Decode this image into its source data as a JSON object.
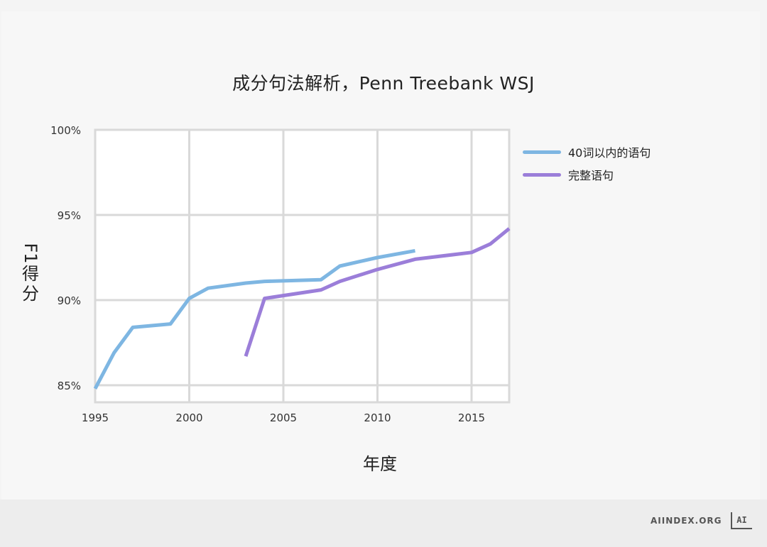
{
  "chart_data": {
    "type": "line",
    "title": "成分句法解析，Penn Treebank WSJ",
    "xlabel": "年度",
    "ylabel": "F1得分",
    "xlim": [
      1995,
      2017
    ],
    "ylim": [
      84,
      100
    ],
    "x_ticks": [
      1995,
      2000,
      2005,
      2010,
      2015
    ],
    "y_ticks": [
      85,
      90,
      95,
      100
    ],
    "y_tick_labels": [
      "85%",
      "90%",
      "95%",
      "100%"
    ],
    "grid": true,
    "legend_position": "right",
    "series": [
      {
        "name": "40词以内的语句",
        "color": "#7eb6e2",
        "points": [
          [
            1995,
            84.8
          ],
          [
            1996,
            86.9
          ],
          [
            1997,
            88.4
          ],
          [
            1999,
            88.6
          ],
          [
            2000,
            90.1
          ],
          [
            2001,
            90.7
          ],
          [
            2003,
            91.0
          ],
          [
            2004,
            91.1
          ],
          [
            2007,
            91.2
          ],
          [
            2008,
            92.0
          ],
          [
            2010,
            92.5
          ],
          [
            2012,
            92.9
          ]
        ]
      },
      {
        "name": "完整语句",
        "color": "#9b7ed9",
        "points": [
          [
            2003,
            86.7
          ],
          [
            2004,
            90.1
          ],
          [
            2007,
            90.6
          ],
          [
            2008,
            91.1
          ],
          [
            2010,
            91.8
          ],
          [
            2012,
            92.4
          ],
          [
            2015,
            92.8
          ],
          [
            2016,
            93.3
          ],
          [
            2017,
            94.2
          ]
        ]
      }
    ]
  },
  "footer": {
    "brand_text": "AIINDEX.ORG",
    "logo_text": "AI"
  }
}
